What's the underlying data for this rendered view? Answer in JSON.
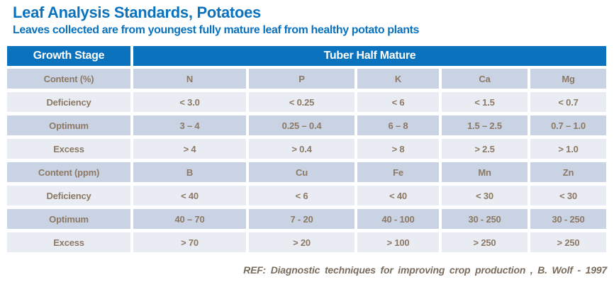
{
  "slide": {
    "title": "Leaf Analysis Standards, Potatoes",
    "subtitle": "Leaves collected are from youngest fully mature leaf from healthy potato plants",
    "reference": "REF: Diagnostic techniques for improving crop production , B. Wolf - 1997"
  },
  "table": {
    "header": {
      "growth_stage_label": "Growth Stage",
      "stage_value": "Tuber Half Mature"
    },
    "rows": [
      {
        "label": "Content (%)",
        "cells": [
          "N",
          "P",
          "K",
          "Ca",
          "Mg"
        ]
      },
      {
        "label": "Deficiency",
        "cells": [
          "< 3.0",
          "< 0.25",
          "< 6",
          "< 1.5",
          "< 0.7"
        ]
      },
      {
        "label": "Optimum",
        "cells": [
          "3 – 4",
          "0.25 – 0.4",
          "6 – 8",
          "1.5 – 2.5",
          "0.7 – 1.0"
        ]
      },
      {
        "label": "Excess",
        "cells": [
          "> 4",
          "> 0.4",
          "> 8",
          "> 2.5",
          "> 1.0"
        ]
      },
      {
        "label": "Content (ppm)",
        "cells": [
          "B",
          "Cu",
          "Fe",
          "Mn",
          "Zn"
        ]
      },
      {
        "label": "Deficiency",
        "cells": [
          "< 40",
          "< 6",
          "< 40",
          "< 30",
          "< 30"
        ]
      },
      {
        "label": "Optimum",
        "cells": [
          "40 – 70",
          "7 - 20",
          "40 - 100",
          "30 - 250",
          "30 - 250"
        ]
      },
      {
        "label": "Excess",
        "cells": [
          "> 70",
          "> 20",
          "> 100",
          "> 250",
          "> 250"
        ]
      }
    ]
  },
  "colors": {
    "accent_blue": "#0B72BE",
    "band_dark": "#CAD3E3",
    "band_light": "#E9ECF3",
    "cell_text": "#8C7965",
    "reference_text": "#7A6C5E"
  }
}
